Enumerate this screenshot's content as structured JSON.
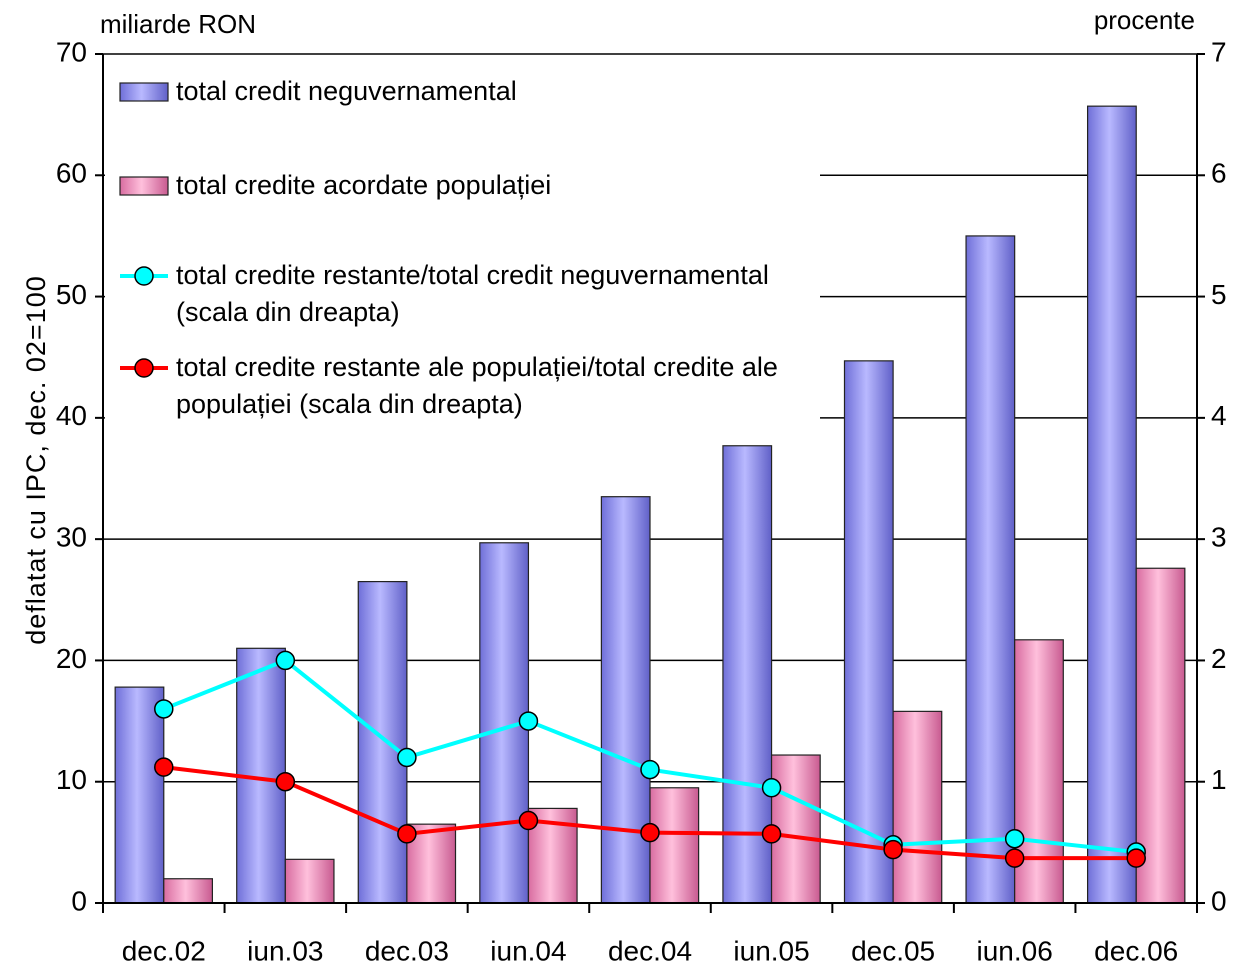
{
  "chart_data": {
    "type": "bar",
    "y_label_left": "miliarde RON",
    "y_label_right": "procente",
    "y_axis_title": "deflatat cu IPC, dec. 02=100",
    "categories": [
      "dec.02",
      "iun.03",
      "dec.03",
      "iun.04",
      "dec.04",
      "iun.05",
      "dec.05",
      "iun.06",
      "dec.06"
    ],
    "series": [
      {
        "name": "total credit neguvernamental",
        "color": "#9999ff",
        "kind": "bar",
        "values": [
          17.8,
          21,
          26.5,
          29.7,
          33.5,
          37.7,
          44.7,
          55,
          65.7
        ]
      },
      {
        "name": "total credite acordate populației",
        "color": "#ff99cc",
        "kind": "bar",
        "values": [
          2,
          3.6,
          6.5,
          7.8,
          9.5,
          12.2,
          15.8,
          21.7,
          27.6
        ]
      },
      {
        "name": "total credite restante/total credit neguvernamental (scala din dreapta)",
        "color": "#00ffff",
        "kind": "line",
        "axis": "y2",
        "values": [
          1.6,
          2.0,
          1.2,
          1.5,
          1.1,
          0.95,
          0.48,
          0.53,
          0.42
        ]
      },
      {
        "name": "total credite restante ale populației/total credite ale populației (scala din dreapta)",
        "color": "#ff0000",
        "kind": "line",
        "axis": "y2",
        "values": [
          1.12,
          1.0,
          0.57,
          0.68,
          0.58,
          0.57,
          0.44,
          0.37,
          0.37
        ]
      }
    ],
    "ylim": [
      0,
      70
    ],
    "yticks": [
      0,
      10,
      20,
      30,
      40,
      50,
      60,
      70
    ],
    "y2lim": [
      0,
      7
    ],
    "y2ticks": [
      0,
      1,
      2,
      3,
      4,
      5,
      6,
      7
    ],
    "grid": true,
    "legend": "upper left"
  }
}
